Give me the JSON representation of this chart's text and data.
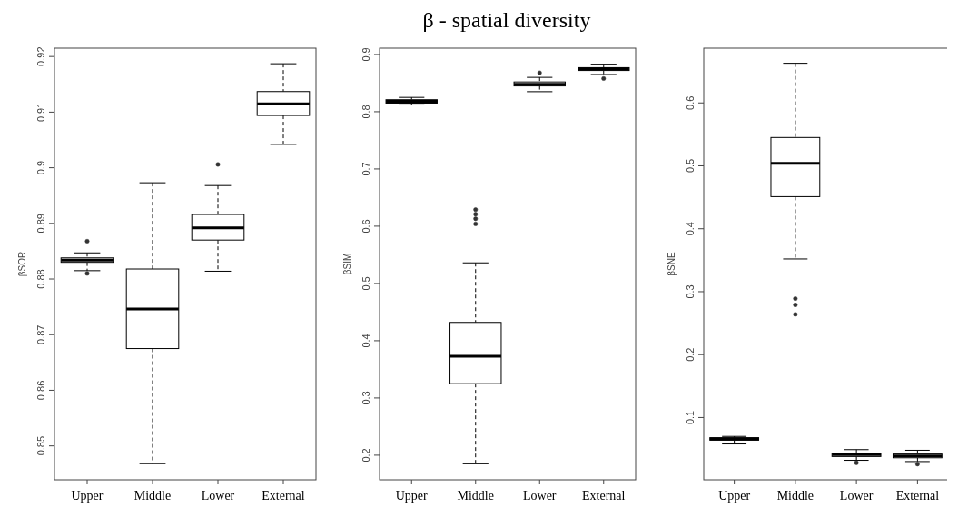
{
  "chart_data": [
    {
      "type": "box",
      "ylabel": "βSOR",
      "categories": [
        "Upper",
        "Middle",
        "Lower",
        "External"
      ],
      "ylim": [
        0.8439,
        0.9215
      ],
      "yticks": [
        0.85,
        0.86,
        0.87,
        0.88,
        0.89,
        0.9,
        0.91,
        0.92
      ],
      "boxes": [
        {
          "low": 0.8815,
          "q1": 0.883,
          "median": 0.8834,
          "q3": 0.8838,
          "high": 0.8847,
          "outliers": [
            0.8868,
            0.881
          ]
        },
        {
          "low": 0.8468,
          "q1": 0.8675,
          "median": 0.8746,
          "q3": 0.8818,
          "high": 0.8973
        },
        {
          "low": 0.8814,
          "q1": 0.887,
          "median": 0.8892,
          "q3": 0.8916,
          "high": 0.8968,
          "outliers": [
            0.9006
          ]
        },
        {
          "low": 0.9042,
          "q1": 0.9094,
          "median": 0.9115,
          "q3": 0.9137,
          "high": 0.9187
        }
      ]
    },
    {
      "type": "box",
      "title": "β - spatial diversity",
      "ylabel": "βSIM",
      "categories": [
        "Upper",
        "Middle",
        "Lower",
        "External"
      ],
      "ylim": [
        0.157,
        0.911
      ],
      "yticks": [
        0.2,
        0.3,
        0.4,
        0.5,
        0.6,
        0.7,
        0.8,
        0.9
      ],
      "boxes": [
        {
          "low": 0.812,
          "q1": 0.815,
          "median": 0.818,
          "q3": 0.821,
          "high": 0.825
        },
        {
          "low": 0.185,
          "q1": 0.325,
          "median": 0.373,
          "q3": 0.432,
          "high": 0.536,
          "outliers": [
            0.629,
            0.621,
            0.613,
            0.604
          ]
        },
        {
          "low": 0.835,
          "q1": 0.845,
          "median": 0.848,
          "q3": 0.852,
          "high": 0.86,
          "outliers": [
            0.868
          ]
        },
        {
          "low": 0.865,
          "q1": 0.872,
          "median": 0.875,
          "q3": 0.877,
          "high": 0.883,
          "outliers": [
            0.858
          ]
        }
      ]
    },
    {
      "type": "box",
      "ylabel": "βSNE",
      "categories": [
        "Upper",
        "Middle",
        "Lower",
        "External"
      ],
      "ylim": [
        0.001,
        0.687
      ],
      "yticks": [
        0.1,
        0.2,
        0.3,
        0.4,
        0.5,
        0.6
      ],
      "boxes": [
        {
          "low": 0.058,
          "q1": 0.064,
          "median": 0.066,
          "q3": 0.068,
          "high": 0.07
        },
        {
          "low": 0.352,
          "q1": 0.451,
          "median": 0.504,
          "q3": 0.545,
          "high": 0.663,
          "outliers": [
            0.289,
            0.279,
            0.264
          ]
        },
        {
          "low": 0.032,
          "q1": 0.038,
          "median": 0.041,
          "q3": 0.043,
          "high": 0.049,
          "outliers": [
            0.028
          ]
        },
        {
          "low": 0.03,
          "q1": 0.036,
          "median": 0.039,
          "q3": 0.042,
          "high": 0.048,
          "outliers": [
            0.026
          ]
        }
      ]
    }
  ]
}
